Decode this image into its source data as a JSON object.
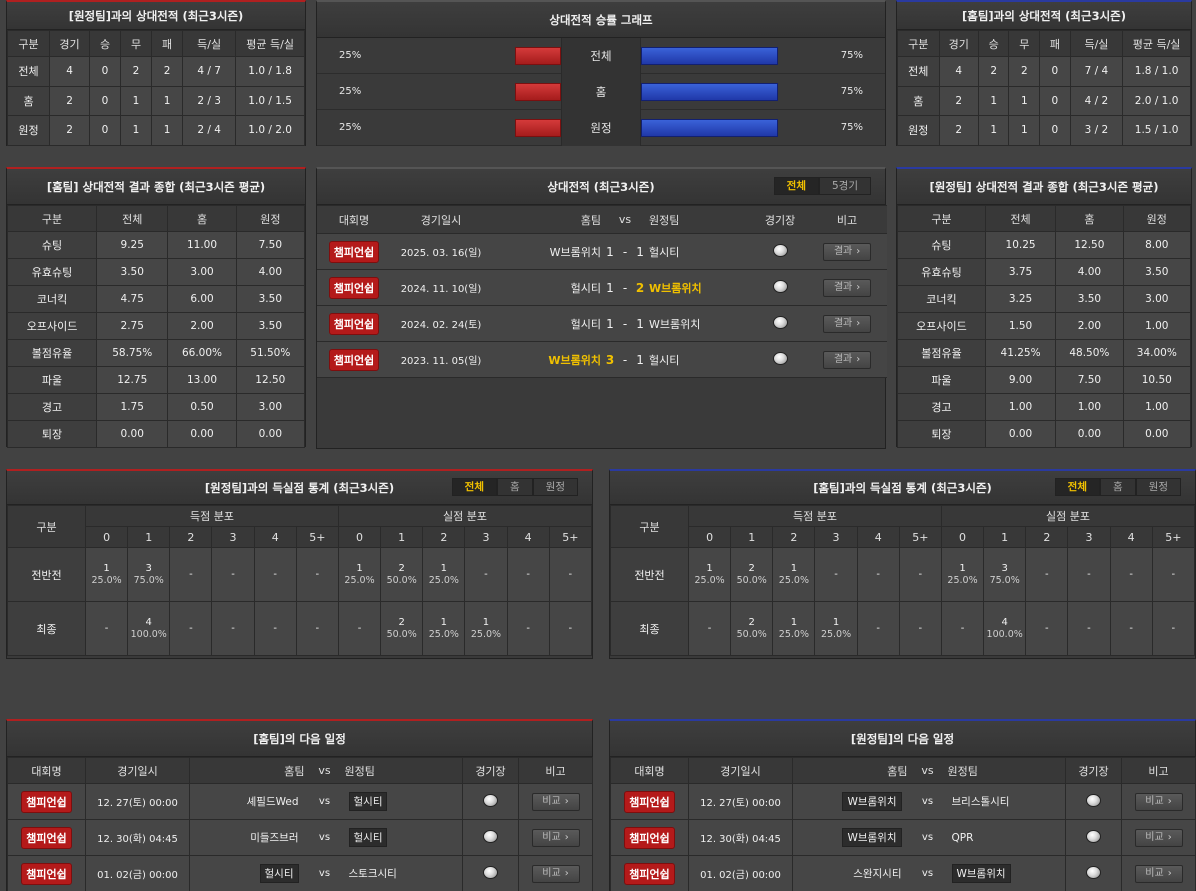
{
  "away_h2h": {
    "title": "[원정팀]과의 상대전적 (최근3시즌)",
    "headers": [
      "구분",
      "경기",
      "승",
      "무",
      "패",
      "득/실",
      "평균 득/실"
    ],
    "rows": [
      [
        "전체",
        "4",
        "0",
        "2",
        "2",
        "4 / 7",
        "1.0 / 1.8"
      ],
      [
        "홈",
        "2",
        "0",
        "1",
        "1",
        "2 / 3",
        "1.0 / 1.5"
      ],
      [
        "원정",
        "2",
        "0",
        "1",
        "1",
        "2 / 4",
        "1.0 / 2.0"
      ]
    ]
  },
  "home_h2h": {
    "title": "[홈팀]과의 상대전적 (최근3시즌)",
    "headers": [
      "구분",
      "경기",
      "승",
      "무",
      "패",
      "득/실",
      "평균 득/실"
    ],
    "rows": [
      [
        "전체",
        "4",
        "2",
        "2",
        "0",
        "7 / 4",
        "1.8 / 1.0"
      ],
      [
        "홈",
        "2",
        "1",
        "1",
        "0",
        "4 / 2",
        "2.0 / 1.0"
      ],
      [
        "원정",
        "2",
        "1",
        "1",
        "0",
        "3 / 2",
        "1.5 / 1.0"
      ]
    ]
  },
  "winrate": {
    "title": "상대전적 승률 그래프",
    "rows": [
      {
        "label": "전체",
        "left": "25%",
        "right": "75%",
        "left_value": 25,
        "right_value": 75
      },
      {
        "label": "홈",
        "left": "25%",
        "right": "75%",
        "left_value": 25,
        "right_value": 75
      },
      {
        "label": "원정",
        "left": "25%",
        "right": "75%",
        "left_value": 25,
        "right_value": 75
      }
    ]
  },
  "home_summary": {
    "title": "[홈팀] 상대전적 결과 종합 (최근3시즌 평균)",
    "headers": [
      "구분",
      "전체",
      "홈",
      "원정"
    ],
    "rows": [
      [
        "슈팅",
        "9.25",
        "11.00",
        "7.50"
      ],
      [
        "유효슈팅",
        "3.50",
        "3.00",
        "4.00"
      ],
      [
        "코너킥",
        "4.75",
        "6.00",
        "3.50"
      ],
      [
        "오프사이드",
        "2.75",
        "2.00",
        "3.50"
      ],
      [
        "볼점유율",
        "58.75%",
        "66.00%",
        "51.50%"
      ],
      [
        "파울",
        "12.75",
        "13.00",
        "12.50"
      ],
      [
        "경고",
        "1.75",
        "0.50",
        "3.00"
      ],
      [
        "퇴장",
        "0.00",
        "0.00",
        "0.00"
      ]
    ]
  },
  "away_summary": {
    "title": "[원정팀] 상대전적 결과 종합 (최근3시즌 평균)",
    "headers": [
      "구분",
      "전체",
      "홈",
      "원정"
    ],
    "rows": [
      [
        "슈팅",
        "10.25",
        "12.50",
        "8.00"
      ],
      [
        "유효슈팅",
        "3.75",
        "4.00",
        "3.50"
      ],
      [
        "코너킥",
        "3.25",
        "3.50",
        "3.00"
      ],
      [
        "오프사이드",
        "1.50",
        "2.00",
        "1.00"
      ],
      [
        "볼점유율",
        "41.25%",
        "48.50%",
        "34.00%"
      ],
      [
        "파울",
        "9.00",
        "7.50",
        "10.50"
      ],
      [
        "경고",
        "1.00",
        "1.00",
        "1.00"
      ],
      [
        "퇴장",
        "0.00",
        "0.00",
        "0.00"
      ]
    ]
  },
  "h2h_matches": {
    "title": "상대전적 (최근3시즌)",
    "tabs": [
      "전체",
      "5경기"
    ],
    "headers": {
      "league": "대회명",
      "date": "경기일시",
      "home": "홈팀",
      "vs": "vs",
      "away": "원정팀",
      "venue": "경기장",
      "note": "비고"
    },
    "button_label": "결과",
    "rows": [
      {
        "league": "챔피언쉽",
        "date": "2025. 03. 16(일)",
        "home": "W브롬위치",
        "hs": "1",
        "sep": "-",
        "as": "1",
        "away": "헐시티",
        "win": "none"
      },
      {
        "league": "챔피언쉽",
        "date": "2024. 11. 10(일)",
        "home": "헐시티",
        "hs": "1",
        "sep": "-",
        "as": "2",
        "away": "W브롬위치",
        "win": "away"
      },
      {
        "league": "챔피언쉽",
        "date": "2024. 02. 24(토)",
        "home": "헐시티",
        "hs": "1",
        "sep": "-",
        "as": "1",
        "away": "W브롬위치",
        "win": "none"
      },
      {
        "league": "챔피언쉽",
        "date": "2023. 11. 05(일)",
        "home": "W브롬위치",
        "hs": "3",
        "sep": "-",
        "as": "1",
        "away": "헐시티",
        "win": "home"
      }
    ]
  },
  "away_goals": {
    "title": "[원정팀]과의 득실점 통계 (최근3시즌)",
    "tabs": [
      "전체",
      "홈",
      "원정"
    ],
    "col_label": "구분",
    "scored_label": "득점 분포",
    "conceded_label": "실점 분포",
    "buckets": [
      "0",
      "1",
      "2",
      "3",
      "4",
      "5+"
    ],
    "rows": [
      {
        "label": "전반전",
        "scored": [
          [
            "1",
            "25.0%"
          ],
          [
            "3",
            "75.0%"
          ],
          [
            "-",
            ""
          ],
          [
            "-",
            ""
          ],
          [
            "-",
            ""
          ],
          [
            "-",
            ""
          ]
        ],
        "conceded": [
          [
            "1",
            "25.0%"
          ],
          [
            "2",
            "50.0%"
          ],
          [
            "1",
            "25.0%"
          ],
          [
            "-",
            ""
          ],
          [
            "-",
            ""
          ],
          [
            "-",
            ""
          ]
        ]
      },
      {
        "label": "최종",
        "scored": [
          [
            "-",
            ""
          ],
          [
            "4",
            "100.0%"
          ],
          [
            "-",
            ""
          ],
          [
            "-",
            ""
          ],
          [
            "-",
            ""
          ],
          [
            "-",
            ""
          ]
        ],
        "conceded": [
          [
            "-",
            ""
          ],
          [
            "2",
            "50.0%"
          ],
          [
            "1",
            "25.0%"
          ],
          [
            "1",
            "25.0%"
          ],
          [
            "-",
            ""
          ],
          [
            "-",
            ""
          ]
        ]
      }
    ]
  },
  "home_goals": {
    "title": "[홈팀]과의 득실점 통계 (최근3시즌)",
    "tabs": [
      "전체",
      "홈",
      "원정"
    ],
    "col_label": "구분",
    "scored_label": "득점 분포",
    "conceded_label": "실점 분포",
    "buckets": [
      "0",
      "1",
      "2",
      "3",
      "4",
      "5+"
    ],
    "rows": [
      {
        "label": "전반전",
        "scored": [
          [
            "1",
            "25.0%"
          ],
          [
            "2",
            "50.0%"
          ],
          [
            "1",
            "25.0%"
          ],
          [
            "-",
            ""
          ],
          [
            "-",
            ""
          ],
          [
            "-",
            ""
          ]
        ],
        "conceded": [
          [
            "1",
            "25.0%"
          ],
          [
            "3",
            "75.0%"
          ],
          [
            "-",
            ""
          ],
          [
            "-",
            ""
          ],
          [
            "-",
            ""
          ],
          [
            "-",
            ""
          ]
        ]
      },
      {
        "label": "최종",
        "scored": [
          [
            "-",
            ""
          ],
          [
            "2",
            "50.0%"
          ],
          [
            "1",
            "25.0%"
          ],
          [
            "1",
            "25.0%"
          ],
          [
            "-",
            ""
          ],
          [
            "-",
            ""
          ]
        ],
        "conceded": [
          [
            "-",
            ""
          ],
          [
            "4",
            "100.0%"
          ],
          [
            "-",
            ""
          ],
          [
            "-",
            ""
          ],
          [
            "-",
            ""
          ],
          [
            "-",
            ""
          ]
        ]
      }
    ]
  },
  "home_next": {
    "title": "[홈팀]의 다음 일정",
    "headers": {
      "league": "대회명",
      "date": "경기일시",
      "home": "홈팀",
      "vs": "vs",
      "away": "원정팀",
      "venue": "경기장",
      "note": "비고"
    },
    "button_label": "비교",
    "rows": [
      {
        "league": "챔피언쉽",
        "date": "12. 27(토) 00:00",
        "home": "셰필드Wed",
        "vs": "vs",
        "away": "헐시티",
        "boxed": "away"
      },
      {
        "league": "챔피언쉽",
        "date": "12. 30(화) 04:45",
        "home": "미들즈브러",
        "vs": "vs",
        "away": "헐시티",
        "boxed": "away"
      },
      {
        "league": "챔피언쉽",
        "date": "01. 02(금) 00:00",
        "home": "헐시티",
        "vs": "vs",
        "away": "스토크시티",
        "boxed": "home"
      }
    ]
  },
  "away_next": {
    "title": "[원정팀]의 다음 일정",
    "headers": {
      "league": "대회명",
      "date": "경기일시",
      "home": "홈팀",
      "vs": "vs",
      "away": "원정팀",
      "venue": "경기장",
      "note": "비고"
    },
    "button_label": "비교",
    "rows": [
      {
        "league": "챔피언쉽",
        "date": "12. 27(토) 00:00",
        "home": "W브롬위치",
        "vs": "vs",
        "away": "브리스톨시티",
        "boxed": "home"
      },
      {
        "league": "챔피언쉽",
        "date": "12. 30(화) 04:45",
        "home": "W브롬위치",
        "vs": "vs",
        "away": "QPR",
        "boxed": "home"
      },
      {
        "league": "챔피언쉽",
        "date": "01. 02(금) 00:00",
        "home": "스완지시티",
        "vs": "vs",
        "away": "W브롬위치",
        "boxed": "away"
      }
    ]
  },
  "colors": {
    "accent_red": "#b41a1a",
    "accent_blue": "#2a3aa0",
    "highlight": "#f0c000"
  }
}
